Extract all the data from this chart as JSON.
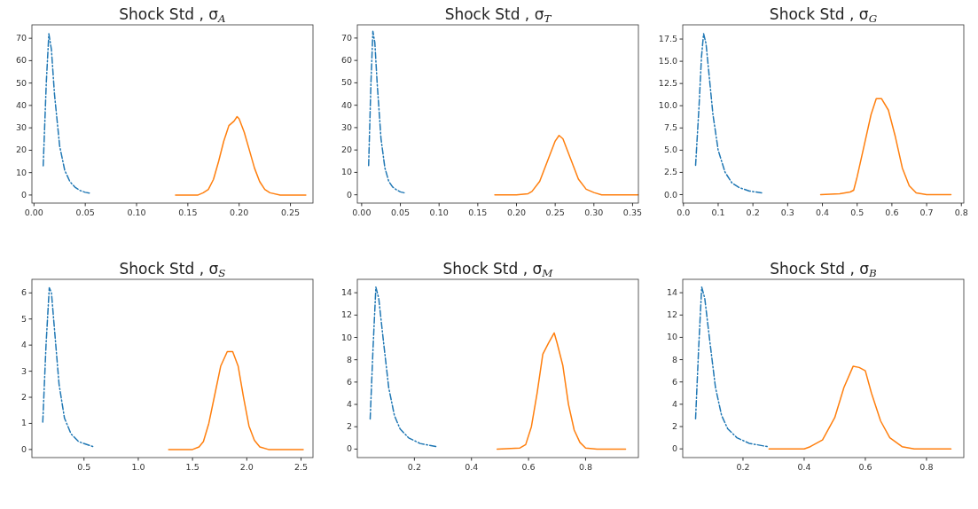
{
  "chart_data": [
    {
      "type": "line",
      "title": "Shock Std , σ$_{A}$",
      "xlim": [
        -0.002,
        0.272
      ],
      "xticks": [
        {
          "value": 0,
          "label": "0.00"
        },
        {
          "value": 0.05,
          "label": "0.05"
        },
        {
          "value": 0.1,
          "label": "0.10"
        },
        {
          "value": 0.15,
          "label": "0.15"
        },
        {
          "value": 0.2,
          "label": "0.20"
        },
        {
          "value": 0.25,
          "label": "0.25"
        }
      ],
      "ylim": [
        -3.6,
        76
      ],
      "yticks": [
        0,
        10,
        20,
        30,
        40,
        50,
        60,
        70
      ],
      "series": [
        {
          "color": "#1f77b4",
          "line_style": "dashed",
          "x": [
            0.009,
            0.012,
            0.0145,
            0.017,
            0.02,
            0.025,
            0.03,
            0.035,
            0.04,
            0.045,
            0.05,
            0.055
          ],
          "values": [
            13,
            50,
            72,
            65,
            45,
            22,
            11,
            6,
            3.5,
            2,
            1.2,
            0.8
          ]
        },
        {
          "color": "#ff7f0e",
          "line_style": "solid",
          "x": [
            0.138,
            0.15,
            0.16,
            0.165,
            0.17,
            0.175,
            0.18,
            0.185,
            0.19,
            0.195,
            0.198,
            0.2,
            0.205,
            0.21,
            0.215,
            0.22,
            0.225,
            0.23,
            0.24,
            0.25,
            0.265
          ],
          "values": [
            0,
            0,
            0,
            1,
            2.5,
            7,
            15,
            24,
            31,
            33,
            35,
            34,
            28,
            20,
            12,
            6,
            2.5,
            1,
            0,
            0,
            0
          ]
        }
      ]
    },
    {
      "type": "line",
      "title": "Shock Std , σ$_{T}$",
      "xlim": [
        -0.0056,
        0.3575
      ],
      "xticks": [
        {
          "value": 0,
          "label": "0.00"
        },
        {
          "value": 0.05,
          "label": "0.05"
        },
        {
          "value": 0.1,
          "label": "0.10"
        },
        {
          "value": 0.15,
          "label": "0.15"
        },
        {
          "value": 0.2,
          "label": "0.20"
        },
        {
          "value": 0.25,
          "label": "0.25"
        },
        {
          "value": 0.3,
          "label": "0.30"
        },
        {
          "value": 0.35,
          "label": "0.35"
        }
      ],
      "ylim": [
        -3.7,
        75.9
      ],
      "yticks": [
        0,
        10,
        20,
        30,
        40,
        50,
        60,
        70
      ],
      "series": [
        {
          "color": "#1f77b4",
          "line_style": "dashed",
          "x": [
            0.009,
            0.012,
            0.0145,
            0.017,
            0.02,
            0.025,
            0.03,
            0.035,
            0.04,
            0.045,
            0.05,
            0.056
          ],
          "values": [
            13,
            50,
            73,
            68,
            50,
            25,
            12,
            6,
            3.5,
            2.2,
            1.3,
            0.8
          ]
        },
        {
          "color": "#ff7f0e",
          "line_style": "solid",
          "x": [
            0.172,
            0.2,
            0.215,
            0.22,
            0.23,
            0.24,
            0.25,
            0.255,
            0.26,
            0.27,
            0.28,
            0.29,
            0.3,
            0.31,
            0.33,
            0.357
          ],
          "values": [
            0,
            0,
            0.5,
            1.5,
            6,
            15,
            24,
            26.5,
            25,
            16,
            7,
            2.5,
            1,
            0,
            0,
            0
          ]
        }
      ]
    },
    {
      "type": "line",
      "title": "Shock Std , σ$_{G}$",
      "xlim": [
        -0.002,
        0.807
      ],
      "xticks": [
        {
          "value": 0,
          "label": "0.0"
        },
        0.1,
        0.2,
        0.3,
        0.4,
        0.5,
        0.6,
        0.7,
        0.8
      ],
      "ylim": [
        -0.95,
        19.1
      ],
      "yticks": [
        {
          "value": 0,
          "label": "0.0"
        },
        2.5,
        {
          "value": 5,
          "label": "5.0"
        },
        7.5,
        {
          "value": 10,
          "label": "10.0"
        },
        12.5,
        {
          "value": 15,
          "label": "15.0"
        },
        17.5
      ],
      "series": [
        {
          "color": "#1f77b4",
          "line_style": "dashed",
          "x": [
            0.035,
            0.045,
            0.052,
            0.058,
            0.065,
            0.075,
            0.085,
            0.1,
            0.12,
            0.14,
            0.16,
            0.19,
            0.225
          ],
          "values": [
            3.3,
            10,
            15.5,
            18.1,
            17,
            13,
            9,
            5,
            2.5,
            1.3,
            0.8,
            0.4,
            0.2
          ]
        },
        {
          "color": "#ff7f0e",
          "line_style": "solid",
          "x": [
            0.395,
            0.45,
            0.48,
            0.49,
            0.5,
            0.52,
            0.54,
            0.555,
            0.57,
            0.59,
            0.61,
            0.63,
            0.65,
            0.67,
            0.7,
            0.77
          ],
          "values": [
            0,
            0.1,
            0.3,
            0.5,
            2,
            5.5,
            9,
            10.8,
            10.8,
            9.5,
            6.5,
            3,
            1,
            0.2,
            0,
            0
          ]
        }
      ]
    },
    {
      "type": "line",
      "title": "Shock Std , σ$_{S}$",
      "xlim": [
        0.02,
        2.61
      ],
      "xticks": [
        0.5,
        {
          "value": 1,
          "label": "1.0"
        },
        1.5,
        {
          "value": 2,
          "label": "2.0"
        },
        2.5
      ],
      "ylim": [
        -0.31,
        6.52
      ],
      "yticks": [
        0,
        1,
        2,
        3,
        4,
        5,
        6
      ],
      "series": [
        {
          "color": "#1f77b4",
          "line_style": "dashed",
          "x": [
            0.12,
            0.15,
            0.18,
            0.2,
            0.23,
            0.27,
            0.32,
            0.38,
            0.45,
            0.52,
            0.59
          ],
          "values": [
            1.05,
            4,
            6.2,
            6,
            4.5,
            2.5,
            1.2,
            0.6,
            0.3,
            0.2,
            0.1
          ]
        },
        {
          "color": "#ff7f0e",
          "line_style": "solid",
          "x": [
            1.28,
            1.5,
            1.56,
            1.6,
            1.65,
            1.7,
            1.76,
            1.82,
            1.87,
            1.92,
            1.97,
            2.02,
            2.07,
            2.12,
            2.2,
            2.52
          ],
          "values": [
            0,
            0,
            0.1,
            0.3,
            1,
            2,
            3.2,
            3.75,
            3.75,
            3.2,
            2,
            0.9,
            0.35,
            0.1,
            0,
            0
          ]
        }
      ]
    },
    {
      "type": "line",
      "title": "Shock Std , σ$_{M}$",
      "xlim": [
        0,
        0.985
      ],
      "xticks": [
        0.2,
        0.4,
        0.6,
        0.8
      ],
      "ylim": [
        -0.76,
        15.2
      ],
      "yticks": [
        0,
        2,
        4,
        6,
        8,
        10,
        12,
        14
      ],
      "series": [
        {
          "color": "#1f77b4",
          "line_style": "dashed",
          "x": [
            0.045,
            0.055,
            0.065,
            0.075,
            0.09,
            0.11,
            0.13,
            0.15,
            0.18,
            0.22,
            0.28
          ],
          "values": [
            2.7,
            9,
            14.5,
            13.5,
            10,
            5.5,
            3,
            1.8,
            1,
            0.5,
            0.2
          ]
        },
        {
          "color": "#ff7f0e",
          "line_style": "solid",
          "x": [
            0.49,
            0.57,
            0.59,
            0.61,
            0.63,
            0.65,
            0.67,
            0.69,
            0.7,
            0.72,
            0.74,
            0.76,
            0.78,
            0.8,
            0.84,
            0.94
          ],
          "values": [
            0,
            0.1,
            0.4,
            2,
            5,
            8.5,
            9.5,
            10.4,
            9.5,
            7.5,
            4,
            1.7,
            0.6,
            0.1,
            0,
            0
          ]
        }
      ]
    },
    {
      "type": "line",
      "title": "Shock Std , σ$_{B}$",
      "xlim": [
        0.003,
        0.922
      ],
      "xticks": [
        0.2,
        0.4,
        0.6,
        0.8
      ],
      "ylim": [
        -0.78,
        15.2
      ],
      "yticks": [
        0,
        2,
        4,
        6,
        8,
        10,
        12,
        14
      ],
      "series": [
        {
          "color": "#1f77b4",
          "line_style": "dashed",
          "x": [
            0.045,
            0.055,
            0.065,
            0.075,
            0.09,
            0.11,
            0.13,
            0.15,
            0.18,
            0.22,
            0.28
          ],
          "values": [
            2.7,
            9,
            14.5,
            13.5,
            10,
            5.5,
            3,
            1.8,
            1,
            0.5,
            0.2
          ]
        },
        {
          "color": "#ff7f0e",
          "line_style": "solid",
          "x": [
            0.285,
            0.4,
            0.42,
            0.46,
            0.5,
            0.53,
            0.56,
            0.58,
            0.6,
            0.62,
            0.65,
            0.68,
            0.72,
            0.76,
            0.88
          ],
          "values": [
            0,
            0,
            0.2,
            0.8,
            2.8,
            5.5,
            7.4,
            7.3,
            7,
            5,
            2.5,
            1,
            0.2,
            0,
            0
          ]
        }
      ]
    }
  ]
}
